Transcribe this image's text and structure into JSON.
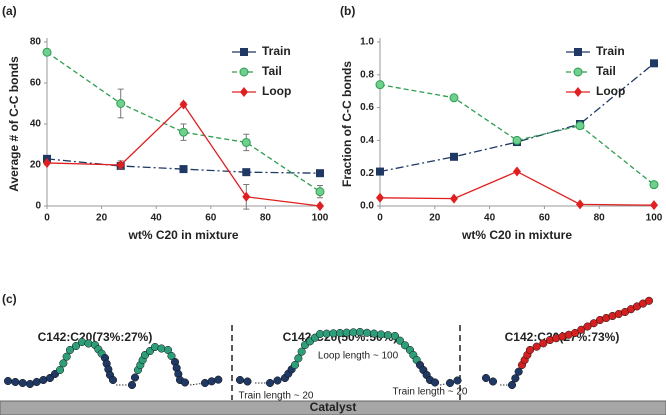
{
  "chart_data": [
    {
      "type": "line",
      "panel_label": "(a)",
      "xlabel": "wt% C20 in mixture",
      "ylabel": "Average # of C-C bonds",
      "x": [
        0,
        27,
        50,
        73,
        100
      ],
      "xlim": [
        0,
        100
      ],
      "xticks": [
        0,
        20,
        40,
        60,
        80,
        100
      ],
      "ylim": [
        0,
        80
      ],
      "yticks": [
        0,
        20,
        40,
        60,
        80
      ],
      "grid": false,
      "legend": "upper right",
      "series": [
        {
          "name": "Train",
          "color": "#1f3864",
          "linestyle": "dashdot",
          "marker": "square",
          "values": [
            23,
            19.5,
            18,
            16.5,
            16
          ]
        },
        {
          "name": "Tail",
          "color": "#2e9e4f",
          "linestyle": "dashed",
          "marker": "circle",
          "values": [
            75,
            50,
            36,
            31,
            7
          ],
          "errors": [
            null,
            7,
            4,
            4,
            3
          ]
        },
        {
          "name": "Loop",
          "color": "#e02020",
          "linestyle": "solid",
          "marker": "diamond",
          "values": [
            21,
            20,
            49.5,
            4.5,
            0
          ],
          "errors": [
            null,
            2,
            1,
            6,
            null
          ]
        }
      ]
    },
    {
      "type": "line",
      "panel_label": "(b)",
      "xlabel": "wt% C20 in mixture",
      "ylabel": "Fraction of C-C bonds",
      "x": [
        0,
        27,
        50,
        73,
        100
      ],
      "xlim": [
        0,
        100
      ],
      "xticks": [
        0,
        20,
        40,
        60,
        80,
        100
      ],
      "ylim": [
        0,
        1
      ],
      "yticks": [
        {
          "value": 0,
          "label": "0.0"
        },
        0.2,
        0.4,
        0.6,
        0.8,
        {
          "value": 1,
          "label": "1.0"
        }
      ],
      "grid": false,
      "legend": "upper right",
      "series": [
        {
          "name": "Train",
          "color": "#1f3864",
          "linestyle": "dashdot",
          "marker": "square",
          "values": [
            0.21,
            0.3,
            0.39,
            0.5,
            0.87
          ]
        },
        {
          "name": "Tail",
          "color": "#2e9e4f",
          "linestyle": "dashed",
          "marker": "circle",
          "values": [
            0.74,
            0.66,
            0.4,
            0.49,
            0.13
          ]
        },
        {
          "name": "Loop",
          "color": "#e02020",
          "linestyle": "solid",
          "marker": "diamond",
          "values": [
            0.05,
            0.045,
            0.21,
            0.01,
            0.005
          ]
        }
      ]
    }
  ],
  "panel_c": {
    "label": "(c)",
    "titles": [
      "C142:C20(73%:27%)",
      "C142:C20(50%:50%)",
      "C142:C20(27%:73%)"
    ],
    "annotations": [
      "Loop length ~ 100",
      "Train length ~ 20",
      "Train length ~ 20"
    ],
    "substrate": "Catalyst"
  }
}
